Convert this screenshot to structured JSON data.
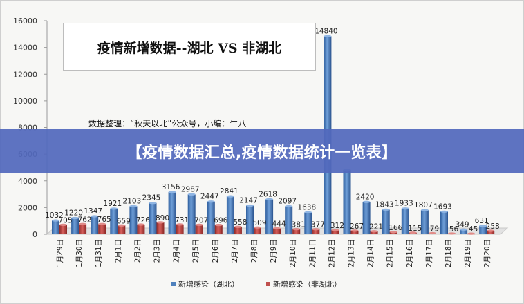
{
  "banner": {
    "text": "【疫情数据汇总,疫情数据统计一览表】"
  },
  "chart_data": {
    "type": "bar",
    "title": "疫情新增数据--湖北 VS 非湖北",
    "annotation": "数据整理：“秋天以北”公众号，小编：牛八",
    "categories": [
      "1月29日",
      "1月30日",
      "1月31日",
      "2月1日",
      "2月2日",
      "2月3日",
      "2月4日",
      "2月5日",
      "2月6日",
      "2月7日",
      "2月8日",
      "2月9日",
      "2月10日",
      "2月11日",
      "2月12日",
      "2月13日",
      "2月14日",
      "2月15日",
      "2月16日",
      "2月17日",
      "2月18日",
      "2月19日",
      "2月20日"
    ],
    "series": [
      {
        "name": "新增感染（湖北）",
        "color": "#4f81bd",
        "values": [
          1032,
          1220,
          1347,
          1921,
          2103,
          2345,
          3156,
          2987,
          2447,
          2841,
          2147,
          2618,
          2097,
          1638,
          14840,
          4823,
          2420,
          1843,
          1933,
          1807,
          1693,
          349,
          631
        ],
        "labels": [
          "1032",
          "1220",
          "1347",
          "1921",
          "2103",
          "2345",
          "3156",
          "2987",
          "2447",
          "2841",
          "2147",
          "2618",
          "2097",
          "1638",
          "14840",
          "",
          "2420",
          "1843",
          "1933",
          "1807",
          "1693",
          "349",
          "631"
        ]
      },
      {
        "name": "新增感染（非湖北）",
        "color": "#c0504d",
        "values": [
          705,
          762,
          765,
          659,
          726,
          890,
          731,
          707,
          696,
          558,
          509,
          444,
          381,
          377,
          312,
          267,
          221,
          166,
          115,
          79,
          56,
          45,
          258
        ],
        "labels": [
          "705",
          "762",
          "765",
          "659",
          "726",
          "890",
          "731",
          "707",
          "696",
          "558",
          "509",
          "444",
          "381",
          "377",
          "312",
          "267",
          "221",
          "166",
          "115",
          "79",
          "56",
          "45",
          "258"
        ]
      }
    ],
    "yticks": [
      "0",
      "2000",
      "4000",
      "6000",
      "8000",
      "10000",
      "12000",
      "14000",
      "16000"
    ],
    "ylim": [
      0,
      16000
    ],
    "grid": false,
    "legend_position": "bottom"
  }
}
